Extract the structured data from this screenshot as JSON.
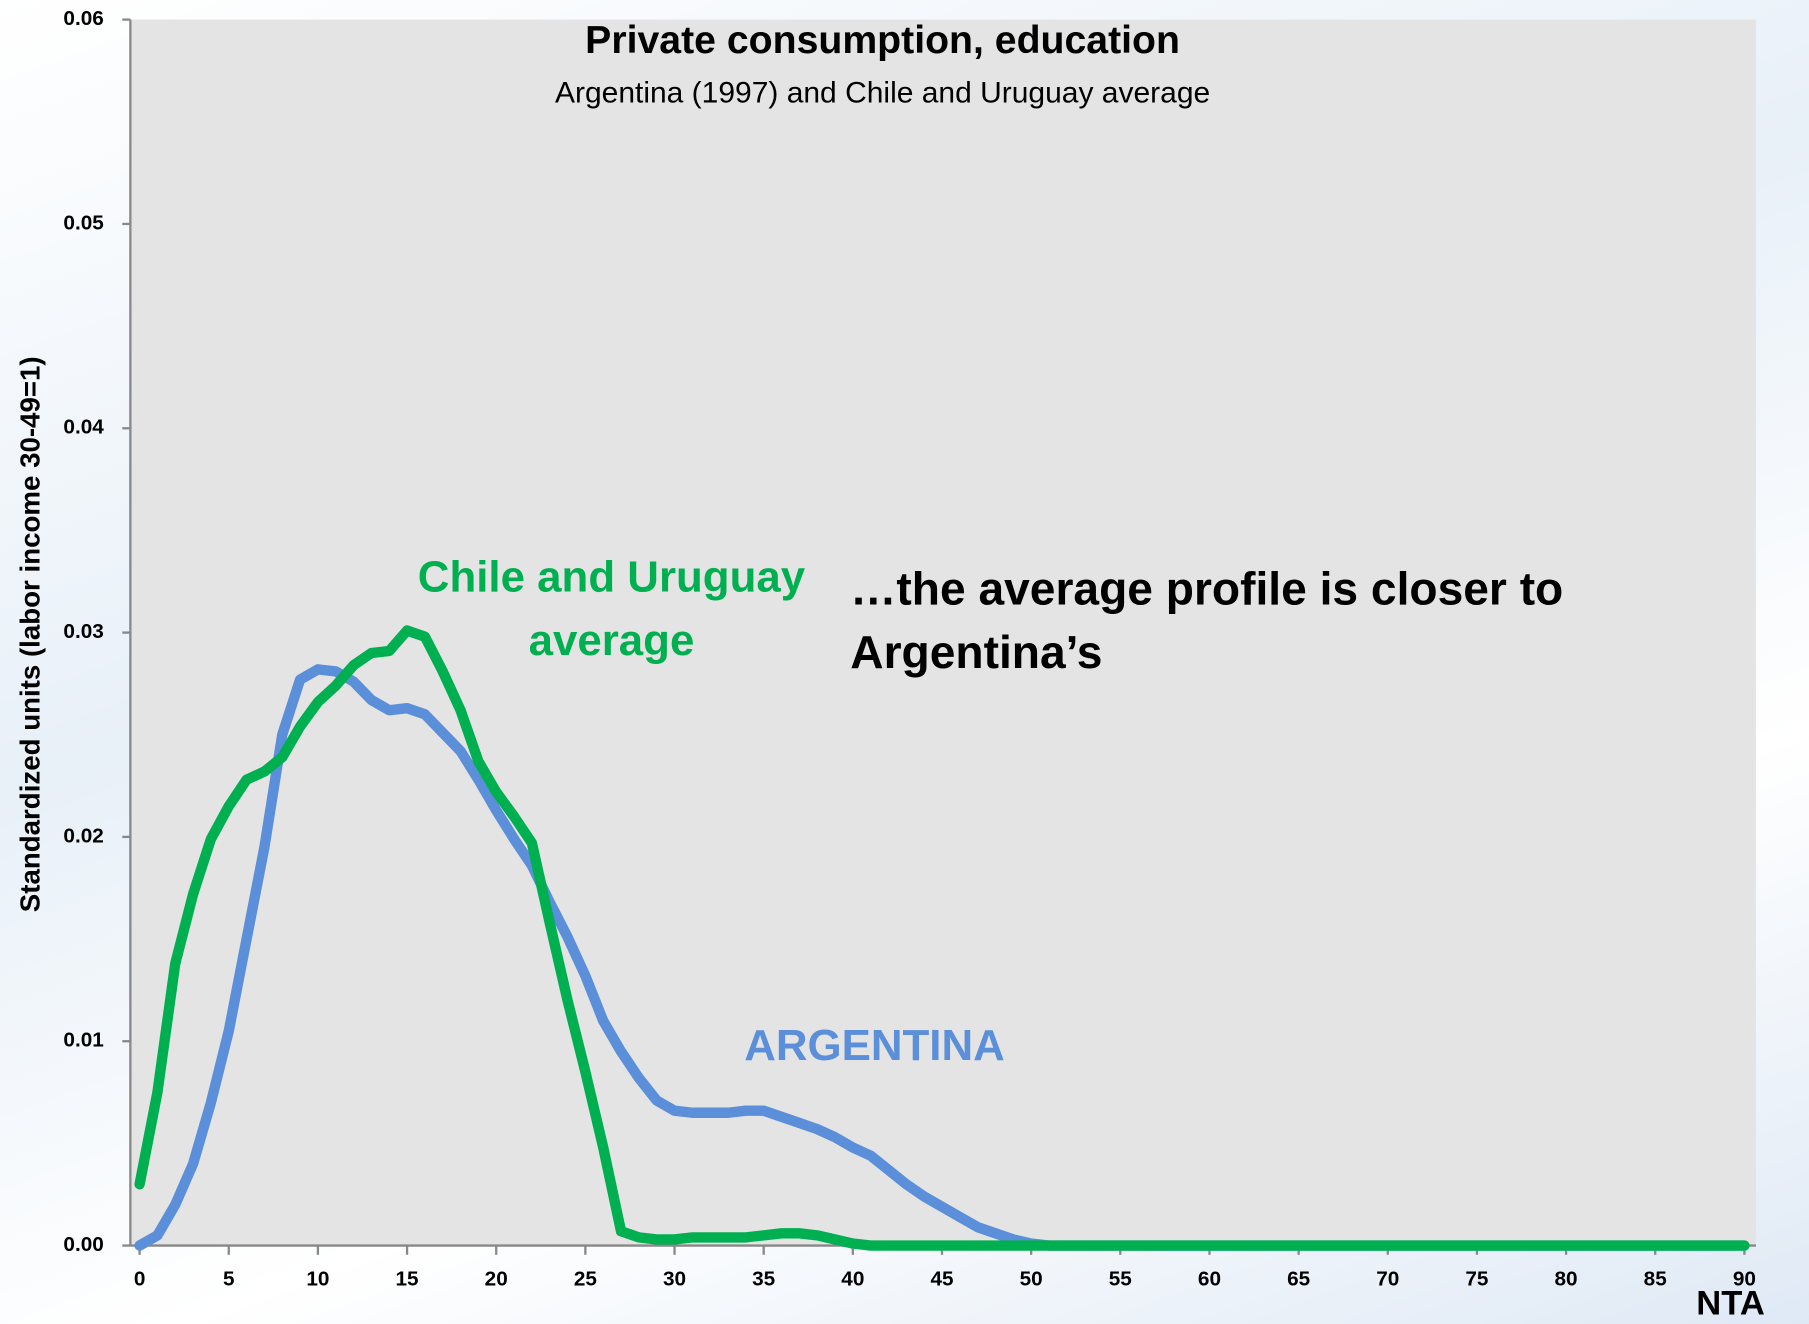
{
  "chart_data": {
    "type": "line",
    "title": "Private consumption, education",
    "subtitle": "Argentina (1997) and Chile and Uruguay average",
    "ylabel": "Standardized units  (labor income 30-49=1)",
    "annotation": "…the average profile is closer to Argentina’s",
    "logo": "NTA",
    "x": [
      0,
      1,
      2,
      3,
      4,
      5,
      6,
      7,
      8,
      9,
      10,
      11,
      12,
      13,
      14,
      15,
      16,
      17,
      18,
      19,
      20,
      21,
      22,
      23,
      24,
      25,
      26,
      27,
      28,
      29,
      30,
      31,
      32,
      33,
      34,
      35,
      36,
      37,
      38,
      39,
      40,
      41,
      42,
      43,
      44,
      45,
      46,
      47,
      48,
      49,
      50,
      51,
      52,
      53,
      54,
      55,
      56,
      57,
      58,
      59,
      60,
      61,
      62,
      63,
      64,
      65,
      66,
      67,
      68,
      69,
      70,
      71,
      72,
      73,
      74,
      75,
      76,
      77,
      78,
      79,
      80,
      81,
      82,
      83,
      84,
      85,
      86,
      87,
      88,
      89,
      90
    ],
    "series": [
      {
        "name": "ARGENTINA",
        "color": "#5b8fd9",
        "values": [
          0,
          0.0005,
          0.002,
          0.004,
          0.007,
          0.0105,
          0.015,
          0.0195,
          0.025,
          0.0277,
          0.0282,
          0.0281,
          0.0276,
          0.0267,
          0.0262,
          0.0263,
          0.026,
          0.0251,
          0.0242,
          0.0228,
          0.0213,
          0.0199,
          0.0186,
          0.0168,
          0.0151,
          0.0132,
          0.011,
          0.0095,
          0.0082,
          0.0071,
          0.0066,
          0.0065,
          0.0065,
          0.0065,
          0.0066,
          0.0066,
          0.0063,
          0.006,
          0.0057,
          0.0053,
          0.0048,
          0.0044,
          0.0037,
          0.003,
          0.0024,
          0.0019,
          0.0014,
          0.0009,
          0.0006,
          0.0003,
          0.0001,
          0,
          0,
          0,
          0,
          0,
          0,
          0,
          0,
          0,
          0,
          0,
          0,
          0,
          0,
          0,
          0,
          0,
          0,
          0,
          0,
          0,
          0,
          0,
          0,
          0,
          0,
          0,
          0,
          0,
          0,
          0,
          0,
          0,
          0,
          0,
          0,
          0,
          0,
          0,
          0
        ]
      },
      {
        "name": "Chile and Uruguay average",
        "color": "#00b050",
        "values": [
          0.003,
          0.0075,
          0.0138,
          0.0172,
          0.0199,
          0.0215,
          0.0228,
          0.0232,
          0.0239,
          0.0254,
          0.0266,
          0.0274,
          0.0284,
          0.029,
          0.0291,
          0.0301,
          0.0298,
          0.0281,
          0.0262,
          0.0237,
          0.0222,
          0.021,
          0.0197,
          0.0158,
          0.012,
          0.0085,
          0.0048,
          0.0007,
          0.0004,
          0.0003,
          0.0003,
          0.0004,
          0.0004,
          0.0004,
          0.0004,
          0.0005,
          0.0006,
          0.0006,
          0.0005,
          0.0003,
          0.0001,
          0,
          0,
          0,
          0,
          0,
          0,
          0,
          0,
          0,
          0,
          0,
          0,
          0,
          0,
          0,
          0,
          0,
          0,
          0,
          0,
          0,
          0,
          0,
          0,
          0,
          0,
          0,
          0,
          0,
          0,
          0,
          0,
          0,
          0,
          0,
          0,
          0,
          0,
          0,
          0,
          0,
          0,
          0,
          0,
          0,
          0,
          0,
          0,
          0,
          0
        ]
      }
    ],
    "xlim": [
      0,
      90
    ],
    "xticks": [
      0,
      5,
      10,
      15,
      20,
      25,
      30,
      35,
      40,
      45,
      50,
      55,
      60,
      65,
      70,
      75,
      80,
      85,
      90
    ],
    "ylim": [
      0,
      0.06
    ],
    "yticks": [
      {
        "value": 0,
        "label": "0.00"
      },
      0.01,
      0.02,
      0.03,
      0.04,
      0.05,
      0.06
    ]
  }
}
